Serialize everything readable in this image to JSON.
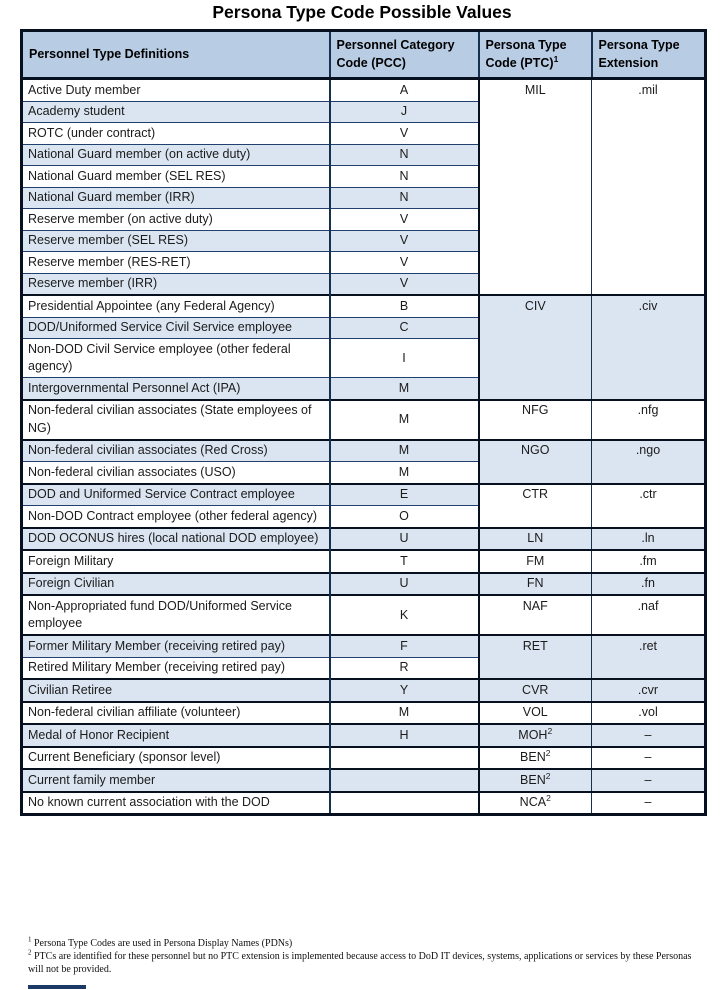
{
  "page": {
    "title": "Persona Type Code Possible Values"
  },
  "colors": {
    "header_bg": "#b8cce4",
    "band_bg": "#dbe5f1",
    "border_thin": "#21406e",
    "border_thick": "#06101f"
  },
  "table": {
    "headers": [
      {
        "line1": "Personnel Type Definitions",
        "line2": "",
        "sup": ""
      },
      {
        "line1": "Personnel Category",
        "line2": "Code (PCC)",
        "sup": ""
      },
      {
        "line1": "Persona Type",
        "line2": "Code (PTC)",
        "sup": "1"
      },
      {
        "line1": "Persona Type",
        "line2": "Extension",
        "sup": ""
      }
    ],
    "groups": [
      {
        "ptc": "MIL",
        "ptc_sup": "",
        "ext": ".mil",
        "cell_shaded": false,
        "rows": [
          {
            "def": "Active Duty member",
            "pcc": "A",
            "shaded": false
          },
          {
            "def": "Academy student",
            "pcc": "J",
            "shaded": true
          },
          {
            "def": "ROTC (under contract)",
            "pcc": "V",
            "shaded": false
          },
          {
            "def": "National Guard member (on active duty)",
            "pcc": "N",
            "shaded": true
          },
          {
            "def": "National Guard member (SEL RES)",
            "pcc": "N",
            "shaded": false
          },
          {
            "def": "National Guard member (IRR)",
            "pcc": "N",
            "shaded": true
          },
          {
            "def": "Reserve member (on active duty)",
            "pcc": "V",
            "shaded": false
          },
          {
            "def": "Reserve member (SEL RES)",
            "pcc": "V",
            "shaded": true
          },
          {
            "def": "Reserve member (RES-RET)",
            "pcc": "V",
            "shaded": false
          },
          {
            "def": "Reserve member (IRR)",
            "pcc": "V",
            "shaded": true
          }
        ]
      },
      {
        "ptc": "CIV",
        "ptc_sup": "",
        "ext": ".civ",
        "cell_shaded": true,
        "rows": [
          {
            "def": "Presidential Appointee (any Federal Agency)",
            "pcc": "B",
            "shaded": false
          },
          {
            "def": "DOD/Uniformed Service Civil Service employee",
            "pcc": "C",
            "shaded": true
          },
          {
            "def": "Non-DOD Civil Service employee (other federal agency)",
            "pcc": "I",
            "shaded": false
          },
          {
            "def": "Intergovernmental Personnel Act (IPA)",
            "pcc": "M",
            "shaded": true
          }
        ]
      },
      {
        "ptc": "NFG",
        "ptc_sup": "",
        "ext": ".nfg",
        "cell_shaded": false,
        "rows": [
          {
            "def": "Non-federal civilian associates (State employees of NG)",
            "pcc": "M",
            "shaded": false
          }
        ]
      },
      {
        "ptc": "NGO",
        "ptc_sup": "",
        "ext": ".ngo",
        "cell_shaded": true,
        "rows": [
          {
            "def": "Non-federal civilian associates (Red Cross)",
            "pcc": "M",
            "shaded": true
          },
          {
            "def": "Non-federal civilian associates (USO)",
            "pcc": "M",
            "shaded": false
          }
        ]
      },
      {
        "ptc": "CTR",
        "ptc_sup": "",
        "ext": ".ctr",
        "cell_shaded": false,
        "rows": [
          {
            "def": "DOD and Uniformed Service Contract employee",
            "pcc": "E",
            "shaded": true
          },
          {
            "def": "Non-DOD Contract employee (other federal agency)",
            "pcc": "O",
            "shaded": false
          }
        ]
      },
      {
        "ptc": "LN",
        "ptc_sup": "",
        "ext": ".ln",
        "cell_shaded": true,
        "rows": [
          {
            "def": "DOD OCONUS hires (local national DOD employee)",
            "pcc": "U",
            "shaded": true
          }
        ]
      },
      {
        "ptc": "FM",
        "ptc_sup": "",
        "ext": ".fm",
        "cell_shaded": false,
        "rows": [
          {
            "def": "Foreign Military",
            "pcc": "T",
            "shaded": false
          }
        ]
      },
      {
        "ptc": "FN",
        "ptc_sup": "",
        "ext": ".fn",
        "cell_shaded": true,
        "rows": [
          {
            "def": "Foreign Civilian",
            "pcc": "U",
            "shaded": true
          }
        ]
      },
      {
        "ptc": "NAF",
        "ptc_sup": "",
        "ext": ".naf",
        "cell_shaded": false,
        "rows": [
          {
            "def": "Non-Appropriated fund DOD/Uniformed Service employee",
            "pcc": "K",
            "shaded": false
          }
        ]
      },
      {
        "ptc": "RET",
        "ptc_sup": "",
        "ext": ".ret",
        "cell_shaded": true,
        "rows": [
          {
            "def": "Former Military Member (receiving retired pay)",
            "pcc": "F",
            "shaded": true
          },
          {
            "def": "Retired Military Member (receiving retired pay)",
            "pcc": "R",
            "shaded": false
          }
        ]
      },
      {
        "ptc": "CVR",
        "ptc_sup": "",
        "ext": ".cvr",
        "cell_shaded": true,
        "rows": [
          {
            "def": "Civilian Retiree",
            "pcc": "Y",
            "shaded": true
          }
        ]
      },
      {
        "ptc": "VOL",
        "ptc_sup": "",
        "ext": ".vol",
        "cell_shaded": false,
        "rows": [
          {
            "def": "Non-federal civilian affiliate (volunteer)",
            "pcc": "M",
            "shaded": false
          }
        ]
      },
      {
        "ptc": "MOH",
        "ptc_sup": "2",
        "ext": "–",
        "cell_shaded": true,
        "rows": [
          {
            "def": "Medal of Honor Recipient",
            "pcc": "H",
            "shaded": true
          }
        ]
      },
      {
        "ptc": "BEN",
        "ptc_sup": "2",
        "ext": "–",
        "cell_shaded": false,
        "rows": [
          {
            "def": "Current Beneficiary (sponsor level)",
            "pcc": "",
            "shaded": false
          }
        ]
      },
      {
        "ptc": "BEN",
        "ptc_sup": "2",
        "ext": "–",
        "cell_shaded": true,
        "rows": [
          {
            "def": "Current family member",
            "pcc": "",
            "shaded": true
          }
        ]
      },
      {
        "ptc": "NCA",
        "ptc_sup": "2",
        "ext": "–",
        "cell_shaded": false,
        "rows": [
          {
            "def": "No known current association with the DOD",
            "pcc": "",
            "shaded": false
          }
        ]
      }
    ]
  },
  "footnotes": [
    {
      "sup": "1",
      "text": "Persona Type Codes are used in Persona Display Names (PDNs)"
    },
    {
      "sup": "2",
      "text": "PTCs are identified for these personnel but no PTC extension is implemented because access to DoD IT devices, systems, applications or services by these Personas will not be provided."
    }
  ]
}
